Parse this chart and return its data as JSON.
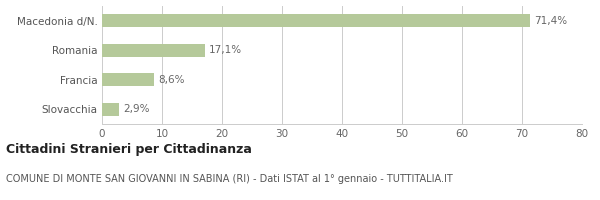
{
  "categories": [
    "Macedonia d/N.",
    "Romania",
    "Francia",
    "Slovacchia"
  ],
  "values": [
    71.4,
    17.1,
    8.6,
    2.9
  ],
  "labels": [
    "71,4%",
    "17,1%",
    "8,6%",
    "2,9%"
  ],
  "bar_color": "#b5c99a",
  "xlim": [
    0,
    80
  ],
  "xticks": [
    0,
    10,
    20,
    30,
    40,
    50,
    60,
    70,
    80
  ],
  "title_bold": "Cittadini Stranieri per Cittadinanza",
  "subtitle": "COMUNE DI MONTE SAN GIOVANNI IN SABINA (RI) - Dati ISTAT al 1° gennaio - TUTTITALIA.IT",
  "bar_height": 0.45,
  "title_fontsize": 9,
  "subtitle_fontsize": 7,
  "tick_fontsize": 7.5,
  "label_fontsize": 7.5,
  "ytick_fontsize": 7.5,
  "background_color": "#ffffff",
  "grid_color": "#cccccc"
}
